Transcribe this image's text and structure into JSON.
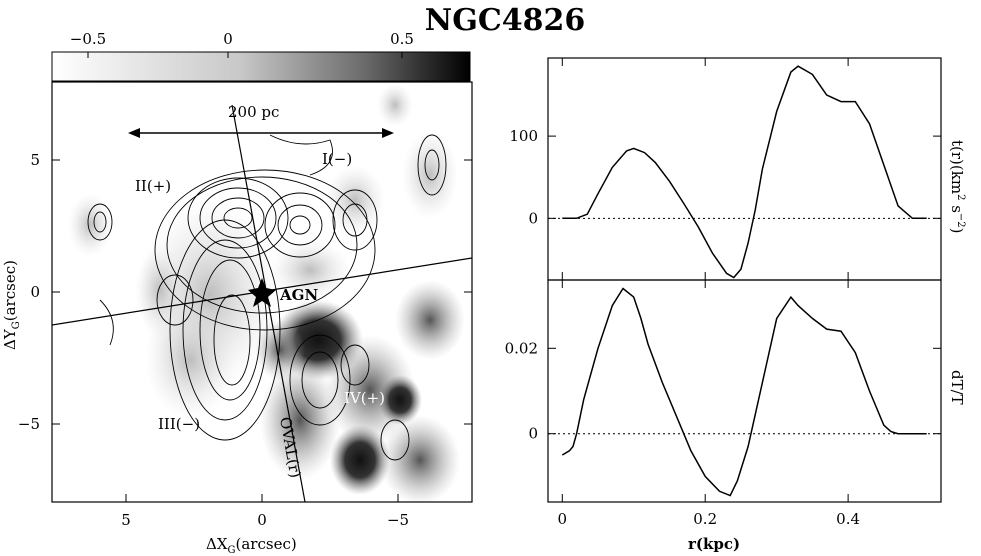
{
  "title": "NGC4826",
  "colorbar": {
    "ticks": [
      "−0.5",
      "0",
      "0.5"
    ]
  },
  "map": {
    "xlabel": "ΔX",
    "xlabel_sub": "G",
    "xlabel_unit": "(arcsec)",
    "ylabel": "ΔY",
    "ylabel_sub": "G",
    "ylabel_unit": "(arcsec)",
    "xticks": [
      "5",
      "0",
      "−5"
    ],
    "yticks": [
      "5",
      "0",
      "−5"
    ],
    "scale_bar_label": "200 pc",
    "agn_label": "AGN",
    "oval_label": "OVAL(r)",
    "quadrants": [
      "I(−)",
      "II(+)",
      "III(−)",
      "IV(+)"
    ]
  },
  "chart_data": [
    {
      "type": "line",
      "panel": "top-right",
      "ylabel": "t(r)(km² s⁻²)",
      "ylabel_base": "t(r)(km",
      "ylabel_mid": " s",
      "ylabel_end": ")",
      "ylabel_sup1": "2",
      "ylabel_sup2": "−2",
      "xlim": [
        -0.02,
        0.53
      ],
      "ylim": [
        -75,
        195
      ],
      "yticks": [
        0,
        100
      ],
      "ytick_labels": [
        "0",
        "100"
      ],
      "zero_line": "dotted",
      "series": [
        {
          "x": [
            0.0,
            0.02,
            0.035,
            0.05,
            0.07,
            0.09,
            0.1,
            0.115,
            0.13,
            0.15,
            0.17,
            0.19,
            0.21,
            0.23,
            0.24,
            0.25,
            0.26,
            0.27,
            0.28,
            0.3,
            0.32,
            0.33,
            0.35,
            0.37,
            0.39,
            0.41,
            0.43,
            0.45,
            0.47,
            0.49,
            0.51
          ],
          "y": [
            0,
            0,
            5,
            30,
            62,
            82,
            85,
            80,
            68,
            45,
            18,
            -10,
            -42,
            -67,
            -72,
            -62,
            -30,
            10,
            60,
            130,
            178,
            185,
            175,
            150,
            142,
            142,
            115,
            65,
            15,
            0,
            0
          ]
        }
      ]
    },
    {
      "type": "line",
      "panel": "bottom-right",
      "xlabel": "r(kpc)",
      "ylabel": "dT/T",
      "xlim": [
        -0.02,
        0.53
      ],
      "ylim": [
        -0.016,
        0.036
      ],
      "xticks": [
        0,
        0.2,
        0.4
      ],
      "xtick_labels": [
        "0",
        "0.2",
        "0.4"
      ],
      "yticks": [
        0,
        0.02
      ],
      "ytick_labels": [
        "0",
        "0.02"
      ],
      "zero_line": "dotted",
      "series": [
        {
          "x": [
            0.0,
            0.01,
            0.015,
            0.02,
            0.03,
            0.05,
            0.07,
            0.085,
            0.1,
            0.11,
            0.12,
            0.14,
            0.16,
            0.18,
            0.2,
            0.22,
            0.235,
            0.245,
            0.26,
            0.28,
            0.3,
            0.32,
            0.33,
            0.35,
            0.37,
            0.39,
            0.41,
            0.43,
            0.45,
            0.46,
            0.47,
            0.48,
            0.5,
            0.51
          ],
          "y": [
            -0.005,
            -0.004,
            -0.003,
            0.0,
            0.008,
            0.02,
            0.03,
            0.034,
            0.032,
            0.027,
            0.021,
            0.012,
            0.004,
            -0.004,
            -0.01,
            -0.0135,
            -0.0145,
            -0.011,
            -0.003,
            0.012,
            0.027,
            0.032,
            0.03,
            0.027,
            0.0245,
            0.024,
            0.019,
            0.01,
            0.002,
            0.0005,
            0.0,
            0.0,
            0.0,
            0.0
          ]
        }
      ]
    }
  ]
}
